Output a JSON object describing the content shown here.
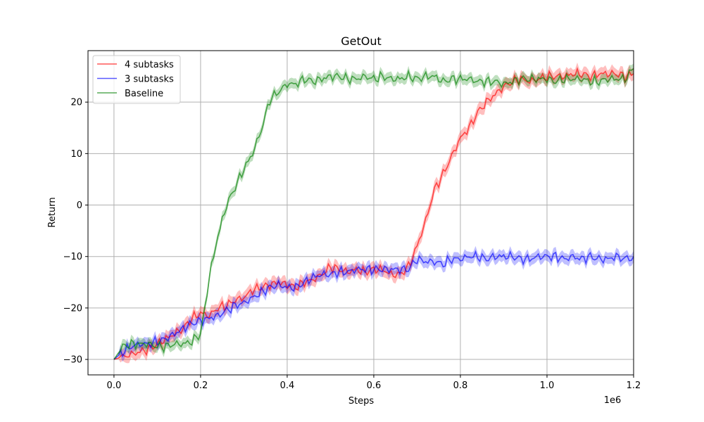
{
  "chart_data": {
    "type": "line",
    "title": "GetOut",
    "xlabel": "Steps",
    "ylabel": "Return",
    "x_offset_label": "1e6",
    "xlim": [
      -0.06,
      1.2
    ],
    "ylim": [
      -33,
      30
    ],
    "xticks": [
      0.0,
      0.2,
      0.4,
      0.6,
      0.8,
      1.0,
      1.2
    ],
    "xtick_labels": [
      "0.0",
      "0.2",
      "0.4",
      "0.6",
      "0.8",
      "1.0",
      "1.2"
    ],
    "yticks": [
      -30,
      -20,
      -10,
      0,
      10,
      20
    ],
    "ytick_labels": [
      "−30",
      "−20",
      "−10",
      "0",
      "10",
      "20"
    ],
    "grid": true,
    "legend_position": "top-left",
    "series": [
      {
        "name": "4 subtasks",
        "color": "#ff0000",
        "band_width": 1.2,
        "x": [
          0.0,
          0.02,
          0.04,
          0.06,
          0.08,
          0.1,
          0.12,
          0.14,
          0.16,
          0.18,
          0.2,
          0.22,
          0.24,
          0.26,
          0.28,
          0.3,
          0.32,
          0.34,
          0.36,
          0.38,
          0.4,
          0.42,
          0.44,
          0.46,
          0.48,
          0.5,
          0.52,
          0.54,
          0.56,
          0.58,
          0.6,
          0.62,
          0.64,
          0.66,
          0.68,
          0.7,
          0.72,
          0.74,
          0.76,
          0.78,
          0.8,
          0.82,
          0.84,
          0.86,
          0.88,
          0.9,
          0.92,
          0.94,
          0.96,
          0.98,
          1.0,
          1.02,
          1.04,
          1.06,
          1.08,
          1.1,
          1.12,
          1.14,
          1.16,
          1.18,
          1.2
        ],
        "y": [
          -30.0,
          -29.5,
          -29.0,
          -28.5,
          -28.0,
          -27.0,
          -26.0,
          -25.0,
          -24.0,
          -22.0,
          -21.0,
          -21.5,
          -20.0,
          -19.5,
          -18.5,
          -18.0,
          -16.5,
          -16.0,
          -15.5,
          -15.0,
          -15.5,
          -16.0,
          -15.0,
          -14.5,
          -13.5,
          -12.0,
          -12.5,
          -13.0,
          -12.5,
          -13.0,
          -12.5,
          -12.5,
          -13.5,
          -13.5,
          -12.0,
          -8.0,
          -3.0,
          3.0,
          6.0,
          9.5,
          13.0,
          15.0,
          18.0,
          20.0,
          21.5,
          23.0,
          24.0,
          24.5,
          24.0,
          24.5,
          25.0,
          25.0,
          25.0,
          25.5,
          25.5,
          25.0,
          25.5,
          25.5,
          25.5,
          25.0,
          25.5
        ]
      },
      {
        "name": "3 subtasks",
        "color": "#0000ff",
        "band_width": 1.1,
        "x": [
          0.0,
          0.02,
          0.04,
          0.06,
          0.08,
          0.1,
          0.12,
          0.14,
          0.16,
          0.18,
          0.2,
          0.22,
          0.24,
          0.26,
          0.28,
          0.3,
          0.32,
          0.34,
          0.36,
          0.38,
          0.4,
          0.42,
          0.44,
          0.46,
          0.48,
          0.5,
          0.52,
          0.54,
          0.56,
          0.58,
          0.6,
          0.62,
          0.64,
          0.66,
          0.68,
          0.7,
          0.72,
          0.74,
          0.76,
          0.78,
          0.8,
          0.82,
          0.84,
          0.86,
          0.88,
          0.9,
          0.92,
          0.94,
          0.96,
          0.98,
          1.0,
          1.02,
          1.04,
          1.06,
          1.08,
          1.1,
          1.12,
          1.14,
          1.16,
          1.18,
          1.2
        ],
        "y": [
          -30.0,
          -28.5,
          -27.5,
          -27.0,
          -27.0,
          -26.5,
          -26.0,
          -25.0,
          -24.0,
          -23.0,
          -22.5,
          -22.0,
          -21.5,
          -20.5,
          -19.5,
          -19.0,
          -18.0,
          -17.0,
          -16.0,
          -15.5,
          -16.0,
          -16.0,
          -15.0,
          -14.0,
          -13.5,
          -13.5,
          -13.0,
          -13.0,
          -12.5,
          -12.5,
          -12.5,
          -12.5,
          -12.5,
          -12.5,
          -12.5,
          -10.5,
          -11.0,
          -11.0,
          -11.5,
          -10.5,
          -10.5,
          -10.0,
          -10.0,
          -10.5,
          -10.0,
          -10.0,
          -10.0,
          -10.5,
          -10.5,
          -10.0,
          -10.0,
          -10.0,
          -10.5,
          -10.0,
          -10.5,
          -10.0,
          -10.5,
          -10.5,
          -10.0,
          -10.5,
          -10.0
        ]
      },
      {
        "name": "Baseline",
        "color": "#008000",
        "band_width": 1.0,
        "x": [
          0.0,
          0.02,
          0.04,
          0.06,
          0.08,
          0.1,
          0.12,
          0.14,
          0.16,
          0.18,
          0.2,
          0.21,
          0.22,
          0.23,
          0.24,
          0.25,
          0.26,
          0.28,
          0.3,
          0.32,
          0.34,
          0.36,
          0.38,
          0.4,
          0.42,
          0.44,
          0.46,
          0.48,
          0.5,
          0.52,
          0.54,
          0.56,
          0.58,
          0.6,
          0.62,
          0.64,
          0.66,
          0.68,
          0.7,
          0.72,
          0.74,
          0.76,
          0.78,
          0.8,
          0.82,
          0.84,
          0.86,
          0.88,
          0.9,
          0.92,
          0.94,
          0.96,
          0.98,
          1.0,
          1.02,
          1.04,
          1.06,
          1.08,
          1.1,
          1.12,
          1.14,
          1.16,
          1.18,
          1.2
        ],
        "y": [
          -30.0,
          -27.5,
          -27.0,
          -27.0,
          -27.0,
          -27.5,
          -27.5,
          -27.0,
          -27.0,
          -26.5,
          -25.0,
          -20.0,
          -14.0,
          -10.0,
          -6.0,
          -3.0,
          0.0,
          3.5,
          7.0,
          10.0,
          14.5,
          20.5,
          22.0,
          23.5,
          23.5,
          24.5,
          24.0,
          24.5,
          25.0,
          25.0,
          24.5,
          24.5,
          25.0,
          24.5,
          25.0,
          24.5,
          24.5,
          25.0,
          24.5,
          25.0,
          25.0,
          24.0,
          24.5,
          24.5,
          24.5,
          24.0,
          24.0,
          24.0,
          23.5,
          24.0,
          24.5,
          24.5,
          24.5,
          24.5,
          24.0,
          24.5,
          24.5,
          24.5,
          24.0,
          24.0,
          24.5,
          24.5,
          24.5,
          26.5
        ]
      }
    ]
  }
}
